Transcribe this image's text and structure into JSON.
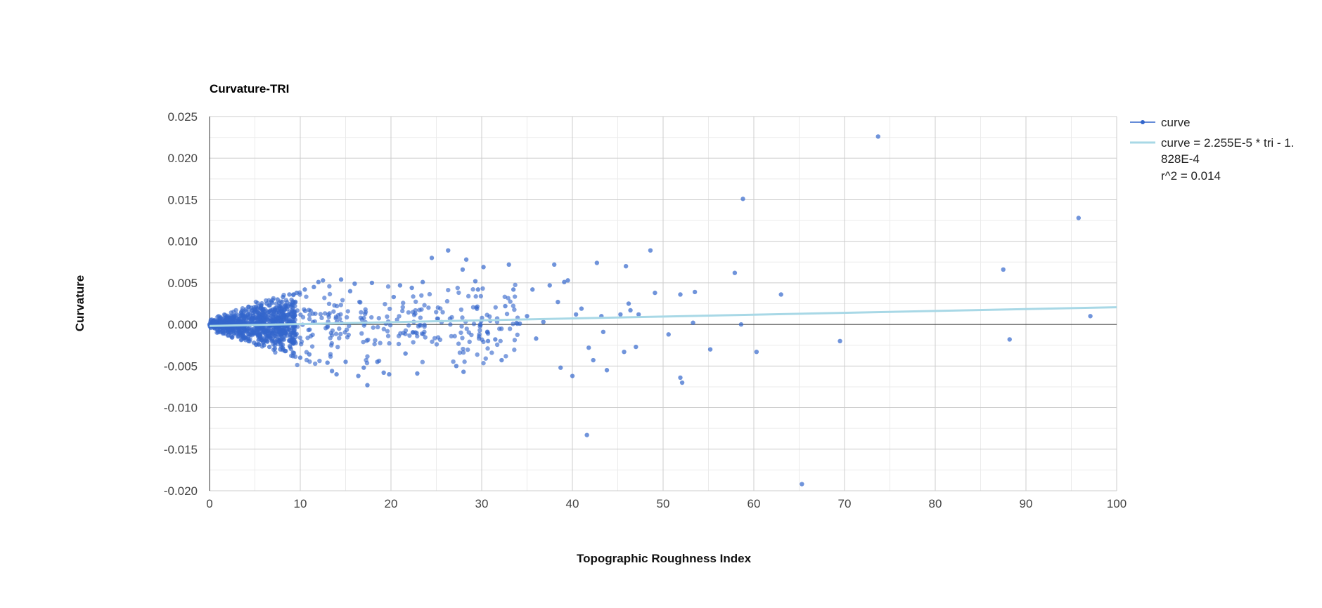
{
  "chart_data": {
    "type": "scatter",
    "title": "Curvature-TRI",
    "xlabel": "Topographic Roughness Index",
    "ylabel": "Curvature",
    "xlim": [
      0,
      100
    ],
    "ylim": [
      -0.02,
      0.025
    ],
    "x_ticks": [
      "0",
      "10",
      "20",
      "30",
      "40",
      "50",
      "60",
      "70",
      "80",
      "90",
      "100"
    ],
    "y_ticks": [
      "0.025",
      "0.020",
      "0.015",
      "0.010",
      "0.005",
      "0.000",
      "-0.005",
      "-0.010",
      "-0.015",
      "-0.020"
    ],
    "grid": true,
    "legend_position": "right",
    "colors": {
      "points": "#3366cc",
      "trendline": "#a8d8e6",
      "grid_major": "#cccccc",
      "grid_minor": "#ebebeb",
      "baseline": "#333333"
    },
    "legend": [
      {
        "name": "curve",
        "style": "point"
      },
      {
        "name": "curve = 2.255E-5 * tri - 1.",
        "name_cont": "828E-4",
        "r2": "r^2 = 0.014",
        "style": "line"
      }
    ],
    "trendline": {
      "slope": 2.255e-05,
      "intercept": -0.0001828,
      "r2": 0.014
    },
    "series": [
      {
        "name": "curve",
        "points": [
          [
            0.0,
            0.0
          ],
          [
            0.5,
            0.0001
          ],
          [
            0.8,
            -0.0001
          ],
          [
            1.2,
            0.0003
          ],
          [
            1.5,
            -0.0004
          ],
          [
            1.8,
            0.0006
          ],
          [
            2.1,
            -0.0007
          ],
          [
            2.4,
            0.0009
          ],
          [
            2.7,
            -0.001
          ],
          [
            3.0,
            0.0012
          ],
          [
            3.2,
            -0.0014
          ],
          [
            3.5,
            0.0015
          ],
          [
            3.8,
            -0.0016
          ],
          [
            4.0,
            0.0018
          ],
          [
            4.3,
            -0.002
          ],
          [
            4.6,
            0.002
          ],
          [
            4.9,
            -0.0022
          ],
          [
            5.1,
            0.0021
          ],
          [
            5.4,
            -0.0024
          ],
          [
            5.7,
            0.0023
          ],
          [
            6.0,
            -0.0025
          ],
          [
            6.3,
            0.0025
          ],
          [
            6.6,
            -0.0027
          ],
          [
            6.9,
            0.0026
          ],
          [
            7.2,
            -0.0029
          ],
          [
            7.5,
            0.003
          ],
          [
            7.8,
            -0.003
          ],
          [
            8.1,
            0.0033
          ],
          [
            8.4,
            -0.0032
          ],
          [
            8.8,
            0.0036
          ],
          [
            9.2,
            -0.0034
          ],
          [
            9.6,
            0.0038
          ],
          [
            10.0,
            -0.004
          ],
          [
            10.5,
            0.0042
          ],
          [
            11.0,
            -0.0036
          ],
          [
            11.5,
            0.0045
          ],
          [
            12.0,
            0.0051
          ],
          [
            12.5,
            0.0053
          ],
          [
            13.0,
            -0.0046
          ],
          [
            13.5,
            -0.0056
          ],
          [
            14.0,
            -0.006
          ],
          [
            14.5,
            0.0054
          ],
          [
            15.0,
            -0.0045
          ],
          [
            15.5,
            0.004
          ],
          [
            16.0,
            0.0049
          ],
          [
            16.4,
            -0.0062
          ],
          [
            17.0,
            -0.0052
          ],
          [
            17.4,
            -0.0073
          ],
          [
            17.9,
            0.005
          ],
          [
            18.5,
            -0.0045
          ],
          [
            19.2,
            -0.0058
          ],
          [
            19.8,
            -0.006
          ],
          [
            20.3,
            0.0033
          ],
          [
            21.0,
            0.0047
          ],
          [
            21.6,
            -0.0035
          ],
          [
            22.3,
            0.0044
          ],
          [
            22.9,
            -0.0059
          ],
          [
            23.5,
            0.0051
          ],
          [
            24.5,
            0.008
          ],
          [
            26.3,
            0.0089
          ],
          [
            27.2,
            -0.005
          ],
          [
            27.9,
            0.0066
          ],
          [
            28.3,
            0.0078
          ],
          [
            28.0,
            -0.0057
          ],
          [
            29.3,
            0.0052
          ],
          [
            30.2,
            0.0069
          ],
          [
            29.6,
            0.0042
          ],
          [
            30.7,
            -0.002
          ],
          [
            31.5,
            -0.0018
          ],
          [
            32.2,
            -0.0043
          ],
          [
            32.6,
            0.0022
          ],
          [
            33.0,
            0.0072
          ],
          [
            33.5,
            0.0042
          ],
          [
            34.2,
            0.0001
          ],
          [
            35.0,
            0.001
          ],
          [
            35.6,
            0.0042
          ],
          [
            36.0,
            -0.0017
          ],
          [
            36.8,
            0.0003
          ],
          [
            37.5,
            0.0047
          ],
          [
            38.0,
            0.0072
          ],
          [
            38.4,
            0.0027
          ],
          [
            38.7,
            -0.0052
          ],
          [
            39.1,
            0.0051
          ],
          [
            39.5,
            0.0053
          ],
          [
            40.0,
            -0.0062
          ],
          [
            40.4,
            0.0012
          ],
          [
            41.0,
            0.0019
          ],
          [
            41.6,
            -0.0133
          ],
          [
            41.8,
            -0.0028
          ],
          [
            42.3,
            -0.0043
          ],
          [
            42.7,
            0.0074
          ],
          [
            43.2,
            0.001
          ],
          [
            43.4,
            -0.0009
          ],
          [
            43.8,
            -0.0055
          ],
          [
            45.3,
            0.0012
          ],
          [
            45.7,
            -0.0033
          ],
          [
            45.9,
            0.007
          ],
          [
            46.2,
            0.0025
          ],
          [
            46.4,
            0.0017
          ],
          [
            47.0,
            -0.0027
          ],
          [
            47.3,
            0.0012
          ],
          [
            48.6,
            0.0089
          ],
          [
            49.1,
            0.0038
          ],
          [
            50.6,
            -0.0012
          ],
          [
            51.9,
            0.0036
          ],
          [
            51.9,
            -0.0064
          ],
          [
            52.1,
            -0.007
          ],
          [
            53.3,
            0.0002
          ],
          [
            53.5,
            0.0039
          ],
          [
            55.2,
            -0.003
          ],
          [
            57.9,
            0.0062
          ],
          [
            58.6,
            0.0
          ],
          [
            58.8,
            0.0151
          ],
          [
            60.3,
            -0.0033
          ],
          [
            63.0,
            0.0036
          ],
          [
            65.3,
            -0.0192
          ],
          [
            69.5,
            -0.002
          ],
          [
            73.7,
            0.0226
          ],
          [
            87.5,
            0.0066
          ],
          [
            88.2,
            -0.0018
          ],
          [
            95.8,
            0.0128
          ],
          [
            97.1,
            0.001
          ]
        ]
      }
    ]
  }
}
